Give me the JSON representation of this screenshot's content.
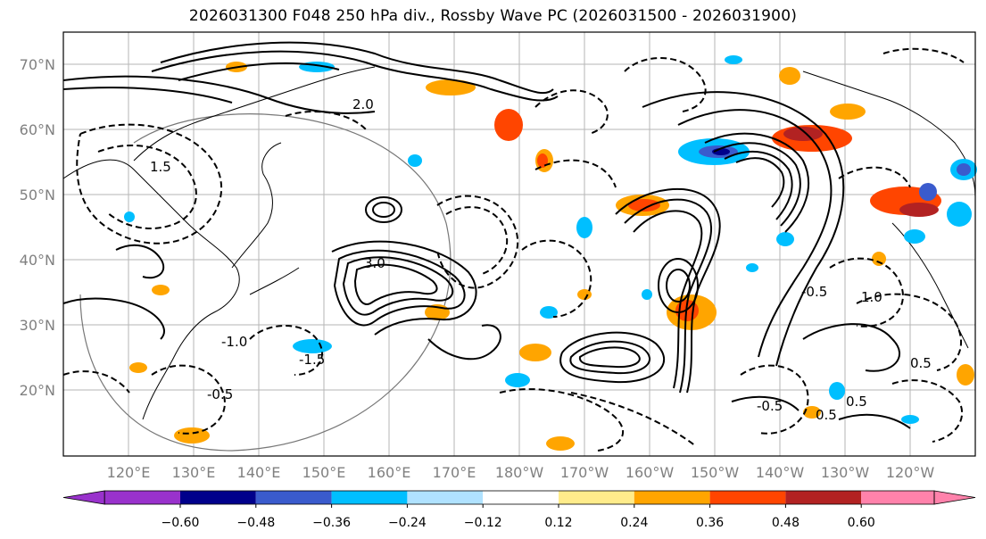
{
  "title": "2026031300 F048 250 hPa div., Rossby Wave PC (2026031500 - 2026031900)",
  "map": {
    "lon_labels": [
      "120°E",
      "130°E",
      "140°E",
      "150°E",
      "160°E",
      "170°E",
      "180°W",
      "170°W",
      "160°W",
      "150°W",
      "140°W",
      "130°W",
      "120°W"
    ],
    "lat_labels": [
      "70°N",
      "60°N",
      "50°N",
      "40°N",
      "30°N",
      "20°N"
    ],
    "contour_labels": [
      "-0.5",
      "0.5",
      "-0.5",
      "0.5",
      "0.5",
      "-0.5",
      "1.0",
      "-1.0",
      "2.0",
      "1.5",
      "-1.5",
      "3.0"
    ],
    "grid": true,
    "contour_color": "#000000",
    "coastline_color": "#000000"
  },
  "colorbar": {
    "ticks": [
      "−0.60",
      "−0.48",
      "−0.36",
      "−0.24",
      "−0.12",
      "0.12",
      "0.24",
      "0.36",
      "0.48",
      "0.60"
    ],
    "colors": [
      "#9932cc",
      "#00008b",
      "#3a5bcd",
      "#00bfff",
      "#b0e2ff",
      "#ffffff",
      "#ffec8b",
      "#ffa500",
      "#ff4500",
      "#b22222",
      "#ff82ab"
    ]
  }
}
